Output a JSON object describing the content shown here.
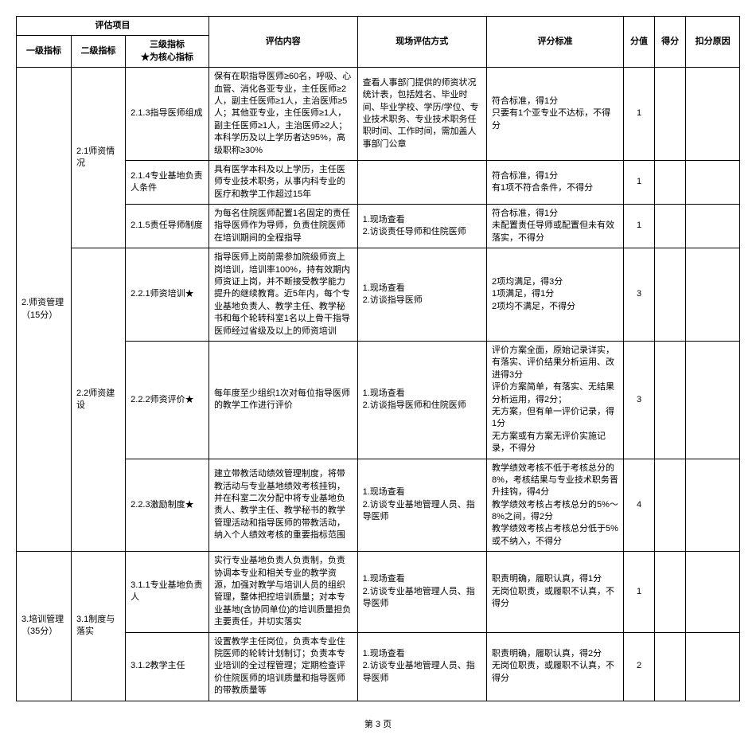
{
  "header": {
    "group": "评估项目",
    "level1": "一级指标",
    "level2": "二级指标",
    "level3": "三级指标\n★为核心指标",
    "content": "评估内容",
    "method": "现场评估方式",
    "standard": "评分标准",
    "score": "分值",
    "got": "得分",
    "reason": "扣分原因"
  },
  "rows": [
    {
      "l1": "2.师资管理\n（15分）",
      "l2": "2.1师资情况",
      "l3": "2.1.3指导医师组成",
      "content": "保有在职指导医师≥60名，呼吸、心血管、消化各亚专业，主任医师≥2人，副主任医师≥1人，主治医师≥5人；其他亚专业，主任医师≥1人，副主任医师≥1人，主治医师≥2人；本科学历及以上学历者达95%，高级职称≥30%",
      "method": "查看人事部门提供的师资状况统计表，包括姓名、毕业时间、毕业学校、学历/学位、专业技术职务、专业技术职务任职时间、工作时间，需加盖人事部门公章",
      "standard": "符合标准，得1分\n只要有1个亚专业不达标，不得分",
      "score": "1"
    },
    {
      "l3": "2.1.4专业基地负责人条件",
      "content": "具有医学本科及以上学历，主任医师专业技术职务，从事内科专业的医疗和教学工作超过15年",
      "method": "",
      "standard": "符合标准，得1分\n有1项不符合条件，不得分",
      "score": "1"
    },
    {
      "l3": "2.1.5责任导师制度",
      "content": "为每名住院医师配置1名固定的责任指导医师作为导师，负责住院医师在培训期间的全程指导",
      "method": "1.现场查看\n2.访谈责任导师和住院医师",
      "standard": "符合标准，得1分\n未配置责任导师或配置但未有效落实，不得分",
      "score": "1"
    },
    {
      "l2": "2.2师资建设",
      "l3": "2.2.1师资培训★",
      "content": "指导医师上岗前需参加院级师资上岗培训，培训率100%，持有效期内师资证上岗，并不断接受教学能力提升的继续教育。近5年内，每个专业基地负责人、教学主任、教学秘书和每个轮转科室1名以上骨干指导医师经过省级及以上的师资培训",
      "method": "1.现场查看\n2.访谈指导医师",
      "standard": "2项均满足，得3分\n1项满足，得1分\n2项均不满足，不得分",
      "score": "3"
    },
    {
      "l3": "2.2.2师资评价★",
      "content": "每年度至少组织1次对每位指导医师的教学工作进行评价",
      "method": "1.现场查看\n2.访谈指导医师和住院医师",
      "standard": "评价方案全面，原始记录详实，有落实、评价结果分析运用、改进得3分\n评价方案简单，有落实、无结果分析运用，得2分；\n无方案，但有单一评价记录，得1分\n无方案或有方案无评价实施记录，不得分",
      "score": "3"
    },
    {
      "l3": "2.2.3激励制度★",
      "content": "建立带教活动绩效管理制度，将带教活动与专业基地绩效考核挂钩，并在科室二次分配中将专业基地负责人、教学主任、教学秘书的教学管理活动和指导医师的带教活动，纳入个人绩效考核的重要指标范围",
      "method": "1.现场查看\n2.访谈专业基地管理人员、指导医师",
      "standard": "教学绩效考核不低于考核总分的8%，考核结果与专业技术职务晋升挂钩，得4分\n教学绩效考核占考核总分的5%～8%之间，得2分\n教学绩效考核占考核总分低于5%或不纳入，不得分",
      "score": "4"
    },
    {
      "l1": "3.培训管理\n（35分）",
      "l2": "3.1制度与落实",
      "l3": "3.1.1专业基地负责人",
      "content": "实行专业基地负责人负责制，负责协调本专业和相关专业的教学资源，加强对教学与培训人员的组织管理，整体把控培训质量；对本专业基地(含协同单位)的培训质量担负主要责任，并切实落实",
      "method": "1.现场查看\n2.访谈专业基地管理人员、指导医师",
      "standard": "职责明确，履职认真，得1分\n无岗位职责，或履职不认真，不得分",
      "score": "1"
    },
    {
      "l3": "3.1.2教学主任",
      "content": "设置教学主任岗位，负责本专业住院医师的轮转计划制订；负责本专业培训的全过程管理；定期检查评价住院医师的培训质量和指导医师的带教质量等",
      "method": "1.现场查看\n2.访谈专业基地管理人员、指导医师",
      "standard": "职责明确，履职认真，得2分\n无岗位职责，或履职不认真，不得分",
      "score": "2"
    }
  ],
  "pageNum": "第 3 页"
}
